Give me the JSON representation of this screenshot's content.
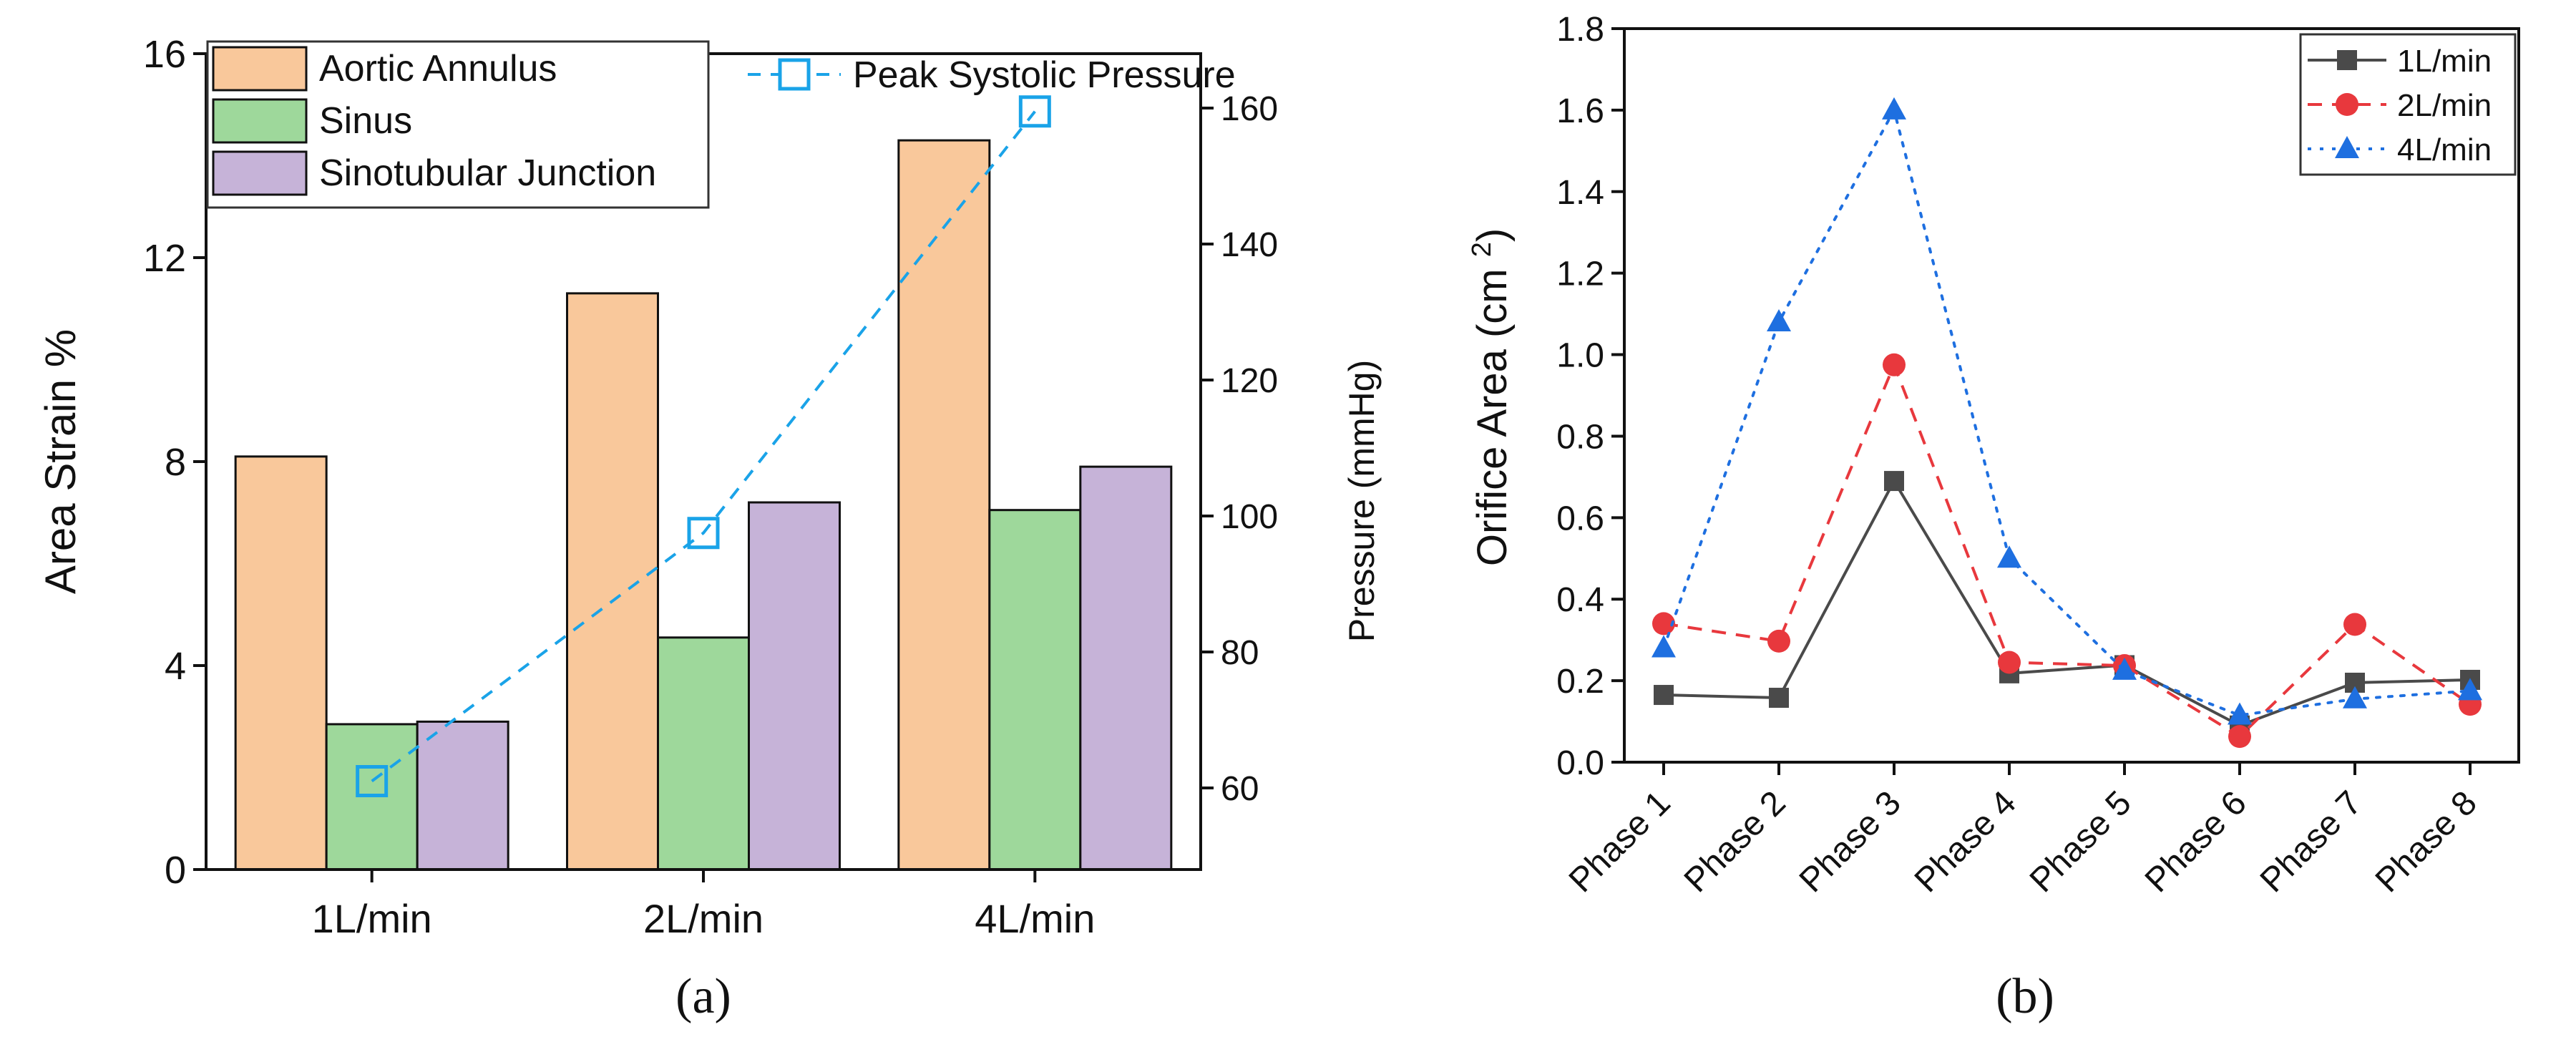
{
  "chart_data": [
    {
      "type": "bar",
      "panel_label": "(a)",
      "ylabel": "Area Strain %",
      "ylim": [
        0,
        16
      ],
      "yticks": [
        0,
        4,
        8,
        12,
        16
      ],
      "categories": [
        "1L/min",
        "2L/min",
        "4L/min"
      ],
      "series": [
        {
          "name": "Aortic Annulus",
          "color": "#F9C89B",
          "values": [
            8.1,
            11.3,
            14.3
          ]
        },
        {
          "name": "Sinus",
          "color": "#9ED89B",
          "values": [
            2.85,
            4.55,
            7.05
          ]
        },
        {
          "name": "Sinotubular Junction",
          "color": "#C6B3D8",
          "values": [
            2.9,
            7.2,
            7.9
          ]
        }
      ],
      "secondary_axis": {
        "ylabel": "Pressure (mmHg)",
        "ylim": [
          48,
          168
        ],
        "yticks": [
          60,
          80,
          100,
          120,
          140,
          160
        ],
        "series": {
          "name": "Peak Systolic Pressure",
          "color": "#1AA3E8",
          "values": [
            61,
            97.5,
            159.5
          ]
        }
      },
      "legend_position": "top-left"
    },
    {
      "type": "line",
      "panel_label": "(b)",
      "ylabel": "Orifice Area (cm²)",
      "ylim": [
        0,
        1.8
      ],
      "yticks": [
        0.0,
        0.2,
        0.4,
        0.6,
        0.8,
        1.0,
        1.2,
        1.4,
        1.6,
        1.8
      ],
      "categories": [
        "Phase 1",
        "Phase 2",
        "Phase 3",
        "Phase 4",
        "Phase 5",
        "Phase 6",
        "Phase 7",
        "Phase 8"
      ],
      "series": [
        {
          "name": "1L/min",
          "color": "#4a4a4a",
          "marker": "square",
          "dash": "solid",
          "values": [
            0.165,
            0.158,
            0.69,
            0.218,
            0.238,
            0.09,
            0.195,
            0.202
          ]
        },
        {
          "name": "2L/min",
          "color": "#E8383D",
          "marker": "circle",
          "dash": "dashed",
          "values": [
            0.34,
            0.297,
            0.975,
            0.245,
            0.237,
            0.063,
            0.338,
            0.142
          ]
        },
        {
          "name": "4L/min",
          "color": "#1E6FE0",
          "marker": "triangle",
          "dash": "dotted",
          "values": [
            0.28,
            1.08,
            1.6,
            0.5,
            0.225,
            0.115,
            0.155,
            0.175
          ]
        }
      ],
      "legend_position": "top-right"
    }
  ]
}
